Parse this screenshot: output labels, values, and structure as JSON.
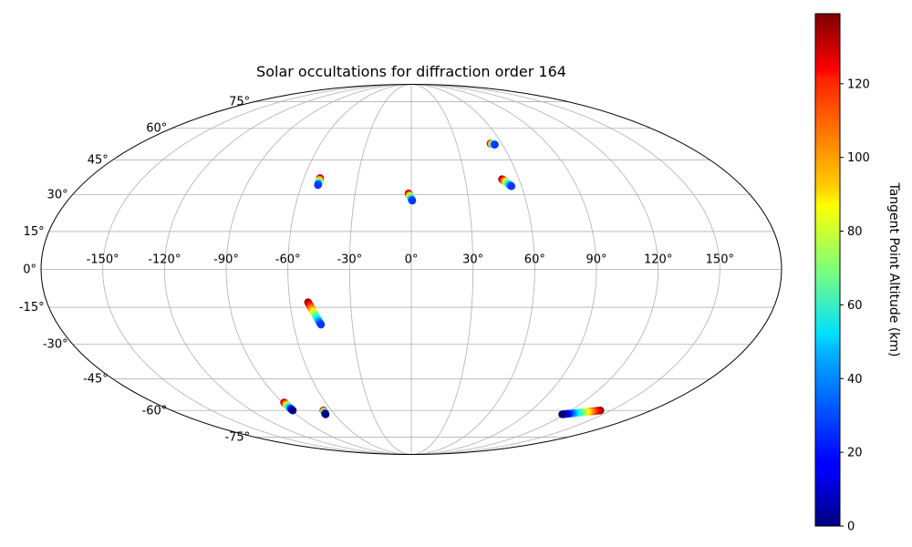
{
  "chart_data": {
    "type": "scatter",
    "title": "Solar occultations for diffraction order 164",
    "projection": "Mollweide (world map, lon/lat graticule)",
    "grid": true,
    "lon_ticks": [
      -150,
      -120,
      -90,
      -60,
      -30,
      0,
      30,
      60,
      90,
      120,
      150
    ],
    "lat_ticks": [
      -75,
      -60,
      -45,
      -30,
      -15,
      0,
      15,
      30,
      45,
      60,
      75
    ],
    "lon_tick_labels": [
      "-150°",
      "-120°",
      "-90°",
      "-60°",
      "-30°",
      "0°",
      "30°",
      "60°",
      "90°",
      "120°",
      "150°"
    ],
    "lat_tick_labels": [
      "-75°",
      "-60°",
      "-45°",
      "-30°",
      "-15°",
      "0°",
      "15°",
      "30°",
      "45°",
      "60°",
      "75°"
    ],
    "colorbar": {
      "label": "Tangent Point Altitude (km)",
      "colormap": "jet",
      "range": [
        0,
        139
      ],
      "ticks": [
        0,
        20,
        40,
        60,
        80,
        100,
        120
      ],
      "tick_labels": [
        "0",
        "20",
        "40",
        "60",
        "80",
        "100",
        "120"
      ]
    },
    "tracks": [
      {
        "lon_start": -51,
        "lat_start": 37,
        "lon_end": -51,
        "lat_end": 34,
        "alt_start": 139,
        "alt_end": 25
      },
      {
        "lon_start": -1.5,
        "lat_start": 30.5,
        "lon_end": 0.5,
        "lat_end": 27.5,
        "alt_start": 139,
        "alt_end": 25
      },
      {
        "lon_start": 52.5,
        "lat_start": 52.5,
        "lon_end": 55,
        "lat_end": 52,
        "alt_start": 139,
        "alt_end": 25
      },
      {
        "lon_start": 50.5,
        "lat_start": 36.5,
        "lon_end": 54.5,
        "lat_end": 33.5,
        "alt_start": 139,
        "alt_end": 25
      },
      {
        "lon_start": -51,
        "lat_start": -13,
        "lon_end": -46,
        "lat_end": -22,
        "alt_start": 139,
        "alt_end": 25
      },
      {
        "lon_start": -89,
        "lat_start": -56,
        "lon_end": -89,
        "lat_end": -60,
        "alt_start": 139,
        "alt_end": 0
      },
      {
        "lon_start": -66,
        "lat_start": -60,
        "lon_end": -67,
        "lat_end": -62,
        "alt_start": 139,
        "alt_end": 0
      },
      {
        "lon_start": 142,
        "lat_start": -60,
        "lon_end": 118,
        "lat_end": -62,
        "alt_start": 139,
        "alt_end": 0
      }
    ]
  }
}
